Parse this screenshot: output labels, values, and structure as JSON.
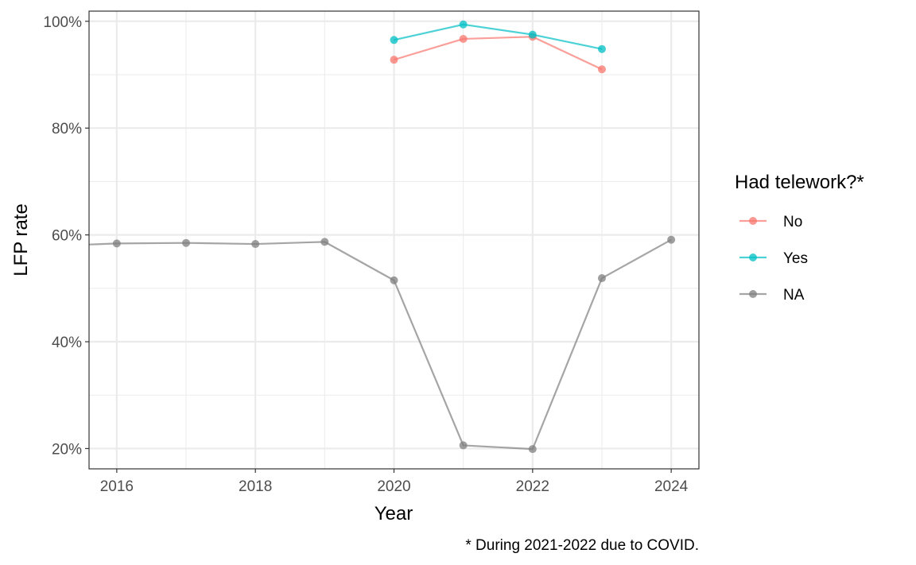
{
  "chart_data": {
    "type": "line",
    "title": "",
    "xlabel": "Year",
    "ylabel": "LFP rate",
    "caption": "* During 2021-2022 due to COVID.",
    "xlim": [
      2015.6,
      2024.4
    ],
    "ylim": [
      16.2,
      101.9
    ],
    "x_ticks": [
      2016,
      2018,
      2020,
      2022,
      2024
    ],
    "x_minor_ticks": [
      2017,
      2019,
      2021,
      2023
    ],
    "x_tick_labels": [
      "2016",
      "2018",
      "2020",
      "2022",
      "2024"
    ],
    "y_ticks": [
      20,
      40,
      60,
      80,
      100
    ],
    "y_minor_ticks": [
      30,
      50,
      70,
      90
    ],
    "y_tick_labels": [
      "20%",
      "40%",
      "60%",
      "80%",
      "100%"
    ],
    "grid": true,
    "legend": {
      "title": "Had telework?*",
      "placement": "right"
    },
    "series": [
      {
        "name": "No",
        "color": "#F8766D",
        "x": [
          2020,
          2021,
          2022,
          2023
        ],
        "y": [
          92.8,
          96.7,
          97.1,
          91.0
        ]
      },
      {
        "name": "Yes",
        "color": "#00BFC4",
        "x": [
          2020,
          2021,
          2022,
          2023
        ],
        "y": [
          96.5,
          99.4,
          97.5,
          94.8
        ]
      },
      {
        "name": "NA",
        "color": "#7F7F7F",
        "x": [
          2015.6,
          2016,
          2017,
          2018,
          2019,
          2020,
          2021,
          2022,
          2023,
          2024
        ],
        "y": [
          58.2,
          58.4,
          58.5,
          58.3,
          58.7,
          51.5,
          20.6,
          19.9,
          51.9,
          59.1
        ],
        "marker_from_index": 1
      }
    ]
  }
}
